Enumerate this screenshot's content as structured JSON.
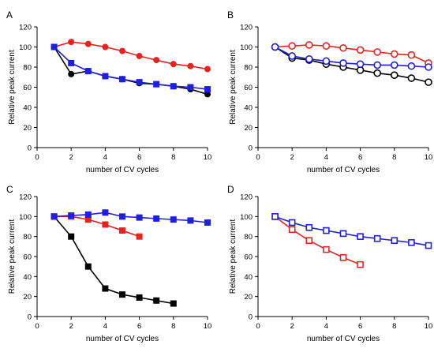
{
  "figure": {
    "axis_color": "#000000",
    "series_colors": {
      "black": "#000000",
      "red": "#e8231f",
      "blue": "#1f1fe0"
    }
  },
  "chart_data": [
    {
      "panel_label": "A",
      "type": "line",
      "xlabel": "number of CV cycles",
      "ylabel": "Relative peak current",
      "xlim": [
        0,
        10
      ],
      "ylim": [
        0,
        120
      ],
      "xticks": [
        0,
        2,
        4,
        6,
        8,
        10
      ],
      "yticks": [
        0,
        20,
        40,
        60,
        80,
        100,
        120
      ],
      "grid": false,
      "series": [
        {
          "color": "#000000",
          "marker": "filled-circle",
          "x": [
            1,
            2,
            3,
            4,
            5,
            6,
            7,
            8,
            9,
            10
          ],
          "values": [
            100,
            73,
            76,
            71,
            68,
            64,
            63,
            61,
            58,
            53
          ]
        },
        {
          "color": "#e8231f",
          "marker": "filled-circle",
          "x": [
            1,
            2,
            3,
            4,
            5,
            6,
            7,
            8,
            9,
            10
          ],
          "values": [
            100,
            105,
            103,
            100,
            96,
            91,
            87,
            83,
            81,
            78
          ]
        },
        {
          "color": "#1f1fe0",
          "marker": "filled-square",
          "x": [
            1,
            2,
            3,
            4,
            5,
            6,
            7,
            8,
            9,
            10
          ],
          "values": [
            100,
            84,
            76,
            71,
            68,
            65,
            63,
            61,
            60,
            58
          ]
        }
      ]
    },
    {
      "panel_label": "B",
      "type": "line",
      "xlabel": "number of CV cycles",
      "ylabel": "Relative peak current",
      "xlim": [
        0,
        10
      ],
      "ylim": [
        0,
        120
      ],
      "xticks": [
        0,
        2,
        4,
        6,
        8,
        10
      ],
      "yticks": [
        0,
        20,
        40,
        60,
        80,
        100,
        120
      ],
      "grid": false,
      "series": [
        {
          "color": "#000000",
          "marker": "open-circle",
          "x": [
            1,
            2,
            3,
            4,
            5,
            6,
            7,
            8,
            9,
            10
          ],
          "values": [
            100,
            89,
            87,
            83,
            80,
            77,
            74,
            72,
            69,
            65
          ]
        },
        {
          "color": "#e8231f",
          "marker": "open-circle",
          "x": [
            1,
            2,
            3,
            4,
            5,
            6,
            7,
            8,
            9,
            10
          ],
          "values": [
            100,
            101,
            102,
            101,
            99,
            97,
            95,
            93,
            92,
            84
          ]
        },
        {
          "color": "#1f1fe0",
          "marker": "open-circle",
          "x": [
            1,
            2,
            3,
            4,
            5,
            6,
            7,
            8,
            9,
            10
          ],
          "values": [
            100,
            91,
            88,
            86,
            84,
            83,
            82,
            82,
            81,
            80
          ]
        }
      ]
    },
    {
      "panel_label": "C",
      "type": "line",
      "xlabel": "number of CV cycles",
      "ylabel": "Relative peak current",
      "xlim": [
        0,
        10
      ],
      "ylim": [
        0,
        120
      ],
      "xticks": [
        0,
        2,
        4,
        6,
        8,
        10
      ],
      "yticks": [
        0,
        20,
        40,
        60,
        80,
        100,
        120
      ],
      "grid": false,
      "series": [
        {
          "color": "#000000",
          "marker": "filled-square",
          "x": [
            1,
            2,
            3,
            4,
            5,
            6,
            7,
            8
          ],
          "values": [
            100,
            80,
            50,
            28,
            22,
            19,
            16,
            13
          ]
        },
        {
          "color": "#e8231f",
          "marker": "filled-square",
          "x": [
            1,
            2,
            3,
            4,
            5,
            6
          ],
          "values": [
            100,
            100,
            97,
            92,
            86,
            80
          ]
        },
        {
          "color": "#1f1fe0",
          "marker": "filled-square",
          "x": [
            1,
            2,
            3,
            4,
            5,
            6,
            7,
            8,
            9,
            10
          ],
          "values": [
            100,
            101,
            102,
            104,
            100,
            99,
            98,
            97,
            96,
            94
          ]
        }
      ]
    },
    {
      "panel_label": "D",
      "type": "line",
      "xlabel": "number of CV cycles",
      "ylabel": "Relative peak current",
      "xlim": [
        0,
        10
      ],
      "ylim": [
        0,
        120
      ],
      "xticks": [
        0,
        2,
        4,
        6,
        8,
        10
      ],
      "yticks": [
        0,
        20,
        40,
        60,
        80,
        100,
        120
      ],
      "grid": false,
      "series": [
        {
          "color": "#e8231f",
          "marker": "open-square",
          "x": [
            1,
            2,
            3,
            4,
            5,
            6
          ],
          "values": [
            100,
            87,
            76,
            67,
            59,
            52
          ]
        },
        {
          "color": "#1f1fe0",
          "marker": "open-square",
          "x": [
            1,
            2,
            3,
            4,
            5,
            6,
            7,
            8,
            9,
            10
          ],
          "values": [
            100,
            94,
            89,
            86,
            83,
            80,
            78,
            76,
            74,
            71
          ]
        }
      ]
    }
  ]
}
